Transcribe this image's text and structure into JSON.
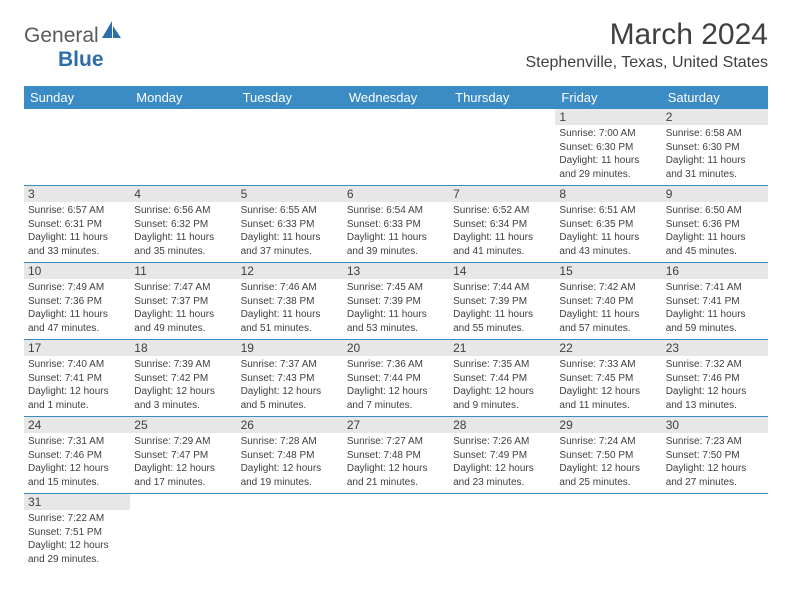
{
  "brand": {
    "word1": "General",
    "word2": "Blue"
  },
  "title": "March 2024",
  "location": "Stephenville, Texas, United States",
  "colors": {
    "header_bg": "#3b8bc4",
    "header_text": "#ffffff",
    "daynum_bg": "#e7e7e7",
    "body_bg": "#ffffff",
    "row_border": "#3b8bc4",
    "text": "#404040",
    "logo_gray": "#5a5a5a",
    "logo_blue": "#2d6da8"
  },
  "weekdays": [
    "Sunday",
    "Monday",
    "Tuesday",
    "Wednesday",
    "Thursday",
    "Friday",
    "Saturday"
  ],
  "cells": [
    {
      "day": "",
      "sunrise": "",
      "sunset": "",
      "daylight": ""
    },
    {
      "day": "",
      "sunrise": "",
      "sunset": "",
      "daylight": ""
    },
    {
      "day": "",
      "sunrise": "",
      "sunset": "",
      "daylight": ""
    },
    {
      "day": "",
      "sunrise": "",
      "sunset": "",
      "daylight": ""
    },
    {
      "day": "",
      "sunrise": "",
      "sunset": "",
      "daylight": ""
    },
    {
      "day": "1",
      "sunrise": "Sunrise: 7:00 AM",
      "sunset": "Sunset: 6:30 PM",
      "daylight": "Daylight: 11 hours and 29 minutes."
    },
    {
      "day": "2",
      "sunrise": "Sunrise: 6:58 AM",
      "sunset": "Sunset: 6:30 PM",
      "daylight": "Daylight: 11 hours and 31 minutes."
    },
    {
      "day": "3",
      "sunrise": "Sunrise: 6:57 AM",
      "sunset": "Sunset: 6:31 PM",
      "daylight": "Daylight: 11 hours and 33 minutes."
    },
    {
      "day": "4",
      "sunrise": "Sunrise: 6:56 AM",
      "sunset": "Sunset: 6:32 PM",
      "daylight": "Daylight: 11 hours and 35 minutes."
    },
    {
      "day": "5",
      "sunrise": "Sunrise: 6:55 AM",
      "sunset": "Sunset: 6:33 PM",
      "daylight": "Daylight: 11 hours and 37 minutes."
    },
    {
      "day": "6",
      "sunrise": "Sunrise: 6:54 AM",
      "sunset": "Sunset: 6:33 PM",
      "daylight": "Daylight: 11 hours and 39 minutes."
    },
    {
      "day": "7",
      "sunrise": "Sunrise: 6:52 AM",
      "sunset": "Sunset: 6:34 PM",
      "daylight": "Daylight: 11 hours and 41 minutes."
    },
    {
      "day": "8",
      "sunrise": "Sunrise: 6:51 AM",
      "sunset": "Sunset: 6:35 PM",
      "daylight": "Daylight: 11 hours and 43 minutes."
    },
    {
      "day": "9",
      "sunrise": "Sunrise: 6:50 AM",
      "sunset": "Sunset: 6:36 PM",
      "daylight": "Daylight: 11 hours and 45 minutes."
    },
    {
      "day": "10",
      "sunrise": "Sunrise: 7:49 AM",
      "sunset": "Sunset: 7:36 PM",
      "daylight": "Daylight: 11 hours and 47 minutes."
    },
    {
      "day": "11",
      "sunrise": "Sunrise: 7:47 AM",
      "sunset": "Sunset: 7:37 PM",
      "daylight": "Daylight: 11 hours and 49 minutes."
    },
    {
      "day": "12",
      "sunrise": "Sunrise: 7:46 AM",
      "sunset": "Sunset: 7:38 PM",
      "daylight": "Daylight: 11 hours and 51 minutes."
    },
    {
      "day": "13",
      "sunrise": "Sunrise: 7:45 AM",
      "sunset": "Sunset: 7:39 PM",
      "daylight": "Daylight: 11 hours and 53 minutes."
    },
    {
      "day": "14",
      "sunrise": "Sunrise: 7:44 AM",
      "sunset": "Sunset: 7:39 PM",
      "daylight": "Daylight: 11 hours and 55 minutes."
    },
    {
      "day": "15",
      "sunrise": "Sunrise: 7:42 AM",
      "sunset": "Sunset: 7:40 PM",
      "daylight": "Daylight: 11 hours and 57 minutes."
    },
    {
      "day": "16",
      "sunrise": "Sunrise: 7:41 AM",
      "sunset": "Sunset: 7:41 PM",
      "daylight": "Daylight: 11 hours and 59 minutes."
    },
    {
      "day": "17",
      "sunrise": "Sunrise: 7:40 AM",
      "sunset": "Sunset: 7:41 PM",
      "daylight": "Daylight: 12 hours and 1 minute."
    },
    {
      "day": "18",
      "sunrise": "Sunrise: 7:39 AM",
      "sunset": "Sunset: 7:42 PM",
      "daylight": "Daylight: 12 hours and 3 minutes."
    },
    {
      "day": "19",
      "sunrise": "Sunrise: 7:37 AM",
      "sunset": "Sunset: 7:43 PM",
      "daylight": "Daylight: 12 hours and 5 minutes."
    },
    {
      "day": "20",
      "sunrise": "Sunrise: 7:36 AM",
      "sunset": "Sunset: 7:44 PM",
      "daylight": "Daylight: 12 hours and 7 minutes."
    },
    {
      "day": "21",
      "sunrise": "Sunrise: 7:35 AM",
      "sunset": "Sunset: 7:44 PM",
      "daylight": "Daylight: 12 hours and 9 minutes."
    },
    {
      "day": "22",
      "sunrise": "Sunrise: 7:33 AM",
      "sunset": "Sunset: 7:45 PM",
      "daylight": "Daylight: 12 hours and 11 minutes."
    },
    {
      "day": "23",
      "sunrise": "Sunrise: 7:32 AM",
      "sunset": "Sunset: 7:46 PM",
      "daylight": "Daylight: 12 hours and 13 minutes."
    },
    {
      "day": "24",
      "sunrise": "Sunrise: 7:31 AM",
      "sunset": "Sunset: 7:46 PM",
      "daylight": "Daylight: 12 hours and 15 minutes."
    },
    {
      "day": "25",
      "sunrise": "Sunrise: 7:29 AM",
      "sunset": "Sunset: 7:47 PM",
      "daylight": "Daylight: 12 hours and 17 minutes."
    },
    {
      "day": "26",
      "sunrise": "Sunrise: 7:28 AM",
      "sunset": "Sunset: 7:48 PM",
      "daylight": "Daylight: 12 hours and 19 minutes."
    },
    {
      "day": "27",
      "sunrise": "Sunrise: 7:27 AM",
      "sunset": "Sunset: 7:48 PM",
      "daylight": "Daylight: 12 hours and 21 minutes."
    },
    {
      "day": "28",
      "sunrise": "Sunrise: 7:26 AM",
      "sunset": "Sunset: 7:49 PM",
      "daylight": "Daylight: 12 hours and 23 minutes."
    },
    {
      "day": "29",
      "sunrise": "Sunrise: 7:24 AM",
      "sunset": "Sunset: 7:50 PM",
      "daylight": "Daylight: 12 hours and 25 minutes."
    },
    {
      "day": "30",
      "sunrise": "Sunrise: 7:23 AM",
      "sunset": "Sunset: 7:50 PM",
      "daylight": "Daylight: 12 hours and 27 minutes."
    },
    {
      "day": "31",
      "sunrise": "Sunrise: 7:22 AM",
      "sunset": "Sunset: 7:51 PM",
      "daylight": "Daylight: 12 hours and 29 minutes."
    },
    {
      "day": "",
      "sunrise": "",
      "sunset": "",
      "daylight": ""
    },
    {
      "day": "",
      "sunrise": "",
      "sunset": "",
      "daylight": ""
    },
    {
      "day": "",
      "sunrise": "",
      "sunset": "",
      "daylight": ""
    },
    {
      "day": "",
      "sunrise": "",
      "sunset": "",
      "daylight": ""
    },
    {
      "day": "",
      "sunrise": "",
      "sunset": "",
      "daylight": ""
    },
    {
      "day": "",
      "sunrise": "",
      "sunset": "",
      "daylight": ""
    }
  ]
}
